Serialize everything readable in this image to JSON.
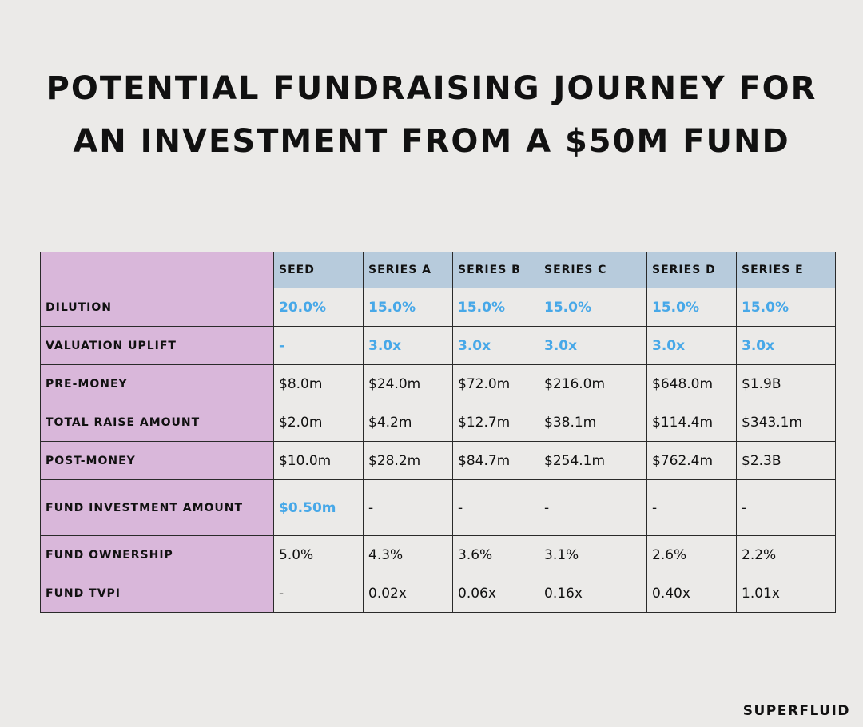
{
  "title": {
    "line1": "POTENTIAL FUNDRAISING JOURNEY FOR",
    "line2": "AN INVESTMENT FROM A $50M FUND"
  },
  "table": {
    "columns": [
      "SEED",
      "SERIES A",
      "SERIES B",
      "SERIES C",
      "SERIES D",
      "SERIES E"
    ],
    "rows": [
      {
        "label": "DILUTION",
        "values": [
          "20.0%",
          "15.0%",
          "15.0%",
          "15.0%",
          "15.0%",
          "15.0%"
        ],
        "highlight": [
          true,
          true,
          true,
          true,
          true,
          true
        ]
      },
      {
        "label": "VALUATION UPLIFT",
        "values": [
          "-",
          "3.0x",
          "3.0x",
          "3.0x",
          "3.0x",
          "3.0x"
        ],
        "highlight": [
          true,
          true,
          true,
          true,
          true,
          true
        ]
      },
      {
        "label": "PRE-MONEY",
        "values": [
          "$8.0m",
          "$24.0m",
          "$72.0m",
          "$216.0m",
          "$648.0m",
          "$1.9B"
        ],
        "highlight": [
          false,
          false,
          false,
          false,
          false,
          false
        ]
      },
      {
        "label": "TOTAL RAISE AMOUNT",
        "values": [
          "$2.0m",
          "$4.2m",
          "$12.7m",
          "$38.1m",
          "$114.4m",
          "$343.1m"
        ],
        "highlight": [
          false,
          false,
          false,
          false,
          false,
          false
        ]
      },
      {
        "label": "POST-MONEY",
        "values": [
          "$10.0m",
          "$28.2m",
          "$84.7m",
          "$254.1m",
          "$762.4m",
          "$2.3B"
        ],
        "highlight": [
          false,
          false,
          false,
          false,
          false,
          false
        ]
      },
      {
        "label": "FUND INVESTMENT AMOUNT",
        "values": [
          "$0.50m",
          "-",
          "-",
          "-",
          "-",
          "-"
        ],
        "highlight": [
          true,
          false,
          false,
          false,
          false,
          false
        ]
      },
      {
        "label": "FUND OWNERSHIP",
        "values": [
          "5.0%",
          "4.3%",
          "3.6%",
          "3.1%",
          "2.6%",
          "2.2%"
        ],
        "highlight": [
          false,
          false,
          false,
          false,
          false,
          false
        ]
      },
      {
        "label": "FUND TVPI",
        "values": [
          "-",
          "0.02x",
          "0.06x",
          "0.16x",
          "0.40x",
          "1.01x"
        ],
        "highlight": [
          false,
          false,
          false,
          false,
          false,
          false
        ]
      }
    ]
  },
  "brand": "SUPERFLUID",
  "colors": {
    "background": "#ebeae8",
    "header_fill": "#b7cbdc",
    "label_fill": "#d9b7da",
    "accent_blue": "#47a8e8"
  }
}
